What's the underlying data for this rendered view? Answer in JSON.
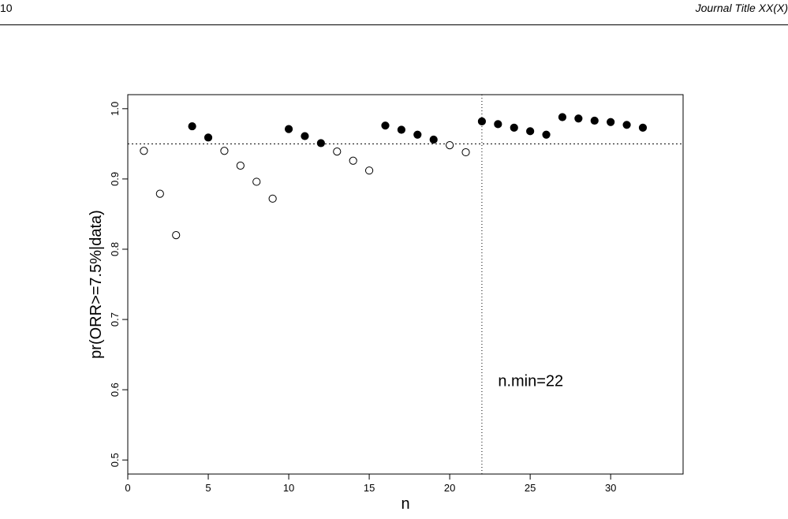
{
  "header": {
    "page_number": "10",
    "journal_title": "Journal Title XX(X)"
  },
  "chart_data": {
    "type": "scatter",
    "title": "",
    "xlabel": "n",
    "ylabel": "pr(ORR>=7.5%|data)",
    "xlim": [
      0,
      34.5
    ],
    "ylim": [
      0.48,
      1.02
    ],
    "xticks": [
      0,
      5,
      10,
      15,
      20,
      25,
      30
    ],
    "yticks": [
      0.5,
      0.6,
      0.7,
      0.8,
      0.9,
      1.0
    ],
    "ytick_labels": [
      "0.5",
      "0.6",
      "0.7",
      "0.8",
      "0.9",
      "1.0"
    ],
    "grid": false,
    "reference_lines": {
      "horizontal_y": 0.95,
      "vertical_x": 22
    },
    "annotation": {
      "text": "n.min=22",
      "x": 23,
      "y": 0.605
    },
    "points": [
      {
        "x": 1,
        "y": 0.94,
        "filled": false
      },
      {
        "x": 2,
        "y": 0.879,
        "filled": false
      },
      {
        "x": 3,
        "y": 0.82,
        "filled": false
      },
      {
        "x": 4,
        "y": 0.975,
        "filled": true
      },
      {
        "x": 5,
        "y": 0.959,
        "filled": true
      },
      {
        "x": 6,
        "y": 0.94,
        "filled": false
      },
      {
        "x": 7,
        "y": 0.919,
        "filled": false
      },
      {
        "x": 8,
        "y": 0.896,
        "filled": false
      },
      {
        "x": 9,
        "y": 0.872,
        "filled": false
      },
      {
        "x": 10,
        "y": 0.971,
        "filled": true
      },
      {
        "x": 11,
        "y": 0.961,
        "filled": true
      },
      {
        "x": 12,
        "y": 0.951,
        "filled": true
      },
      {
        "x": 13,
        "y": 0.939,
        "filled": false
      },
      {
        "x": 14,
        "y": 0.926,
        "filled": false
      },
      {
        "x": 15,
        "y": 0.912,
        "filled": false
      },
      {
        "x": 16,
        "y": 0.976,
        "filled": true
      },
      {
        "x": 17,
        "y": 0.97,
        "filled": true
      },
      {
        "x": 18,
        "y": 0.963,
        "filled": true
      },
      {
        "x": 19,
        "y": 0.956,
        "filled": true
      },
      {
        "x": 20,
        "y": 0.948,
        "filled": false
      },
      {
        "x": 21,
        "y": 0.938,
        "filled": false
      },
      {
        "x": 22,
        "y": 0.982,
        "filled": true
      },
      {
        "x": 23,
        "y": 0.978,
        "filled": true
      },
      {
        "x": 24,
        "y": 0.973,
        "filled": true
      },
      {
        "x": 25,
        "y": 0.968,
        "filled": true
      },
      {
        "x": 26,
        "y": 0.963,
        "filled": true
      },
      {
        "x": 27,
        "y": 0.988,
        "filled": true
      },
      {
        "x": 28,
        "y": 0.986,
        "filled": true
      },
      {
        "x": 29,
        "y": 0.983,
        "filled": true
      },
      {
        "x": 30,
        "y": 0.981,
        "filled": true
      },
      {
        "x": 31,
        "y": 0.977,
        "filled": true
      },
      {
        "x": 32,
        "y": 0.973,
        "filled": true
      }
    ]
  }
}
